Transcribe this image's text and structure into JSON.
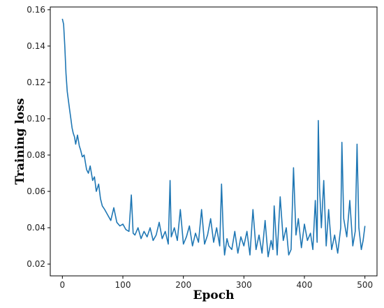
{
  "chart_data": {
    "type": "line",
    "xlabel": "Epoch",
    "ylabel": "Training loss",
    "xlim": [
      -20,
      520
    ],
    "ylim": [
      0.0135,
      0.1615
    ],
    "x_ticks": [
      0,
      100,
      200,
      300,
      400,
      500
    ],
    "x_tick_labels": [
      "0",
      "100",
      "200",
      "300",
      "400",
      "500"
    ],
    "y_ticks": [
      0.02,
      0.04,
      0.06,
      0.08,
      0.1,
      0.12,
      0.14,
      0.16
    ],
    "y_tick_labels": [
      "0.02",
      "0.04",
      "0.06",
      "0.08",
      "0.10",
      "0.12",
      "0.14",
      "0.16"
    ],
    "grid": false,
    "color": "#1f77b4",
    "series": [
      {
        "x": [
          0,
          2,
          4,
          6,
          8,
          10,
          12,
          14,
          16,
          18,
          20,
          22,
          25,
          28,
          30,
          33,
          36,
          40,
          43,
          46,
          50,
          53,
          56,
          60,
          63,
          66,
          70,
          75,
          80,
          85,
          90,
          95,
          100,
          105,
          110,
          114,
          117,
          120,
          125,
          130,
          135,
          140,
          145,
          150,
          155,
          160,
          165,
          170,
          175,
          178,
          180,
          185,
          190,
          195,
          200,
          205,
          210,
          215,
          220,
          225,
          230,
          235,
          240,
          245,
          250,
          255,
          260,
          263,
          266,
          268,
          272,
          275,
          280,
          285,
          290,
          295,
          300,
          305,
          310,
          315,
          320,
          325,
          330,
          335,
          340,
          345,
          348,
          350,
          355,
          360,
          365,
          370,
          374,
          378,
          382,
          386,
          390,
          395,
          400,
          405,
          410,
          414,
          418,
          421,
          423,
          425,
          428,
          432,
          436,
          440,
          445,
          450,
          455,
          460,
          462,
          465,
          470,
          475,
          480,
          484,
          487,
          490,
          494,
          497,
          500
        ],
        "y": [
          0.155,
          0.152,
          0.14,
          0.125,
          0.115,
          0.11,
          0.105,
          0.1,
          0.095,
          0.092,
          0.09,
          0.086,
          0.091,
          0.085,
          0.083,
          0.079,
          0.08,
          0.072,
          0.07,
          0.074,
          0.066,
          0.068,
          0.06,
          0.064,
          0.056,
          0.052,
          0.05,
          0.047,
          0.044,
          0.051,
          0.043,
          0.041,
          0.042,
          0.039,
          0.038,
          0.058,
          0.037,
          0.036,
          0.04,
          0.034,
          0.038,
          0.035,
          0.04,
          0.033,
          0.036,
          0.043,
          0.034,
          0.038,
          0.031,
          0.066,
          0.035,
          0.04,
          0.033,
          0.05,
          0.031,
          0.035,
          0.041,
          0.03,
          0.037,
          0.032,
          0.05,
          0.031,
          0.036,
          0.045,
          0.032,
          0.04,
          0.03,
          0.064,
          0.036,
          0.025,
          0.034,
          0.03,
          0.028,
          0.038,
          0.026,
          0.035,
          0.03,
          0.038,
          0.025,
          0.05,
          0.028,
          0.036,
          0.026,
          0.044,
          0.024,
          0.033,
          0.028,
          0.052,
          0.025,
          0.057,
          0.033,
          0.04,
          0.025,
          0.028,
          0.073,
          0.036,
          0.045,
          0.029,
          0.042,
          0.033,
          0.037,
          0.028,
          0.055,
          0.032,
          0.099,
          0.062,
          0.04,
          0.066,
          0.03,
          0.05,
          0.028,
          0.036,
          0.026,
          0.04,
          0.087,
          0.045,
          0.035,
          0.055,
          0.03,
          0.038,
          0.086,
          0.04,
          0.028,
          0.033,
          0.041
        ]
      }
    ]
  }
}
